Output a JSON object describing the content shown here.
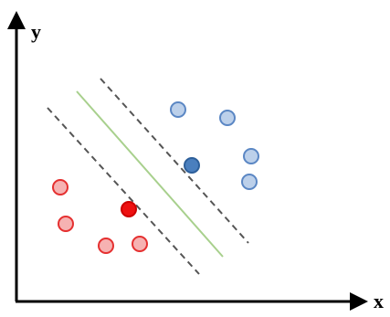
{
  "axes": {
    "x_label": "x",
    "y_label": "y"
  },
  "colors": {
    "axis": "#000000",
    "margin_line": "#555555",
    "hyperplane": "#a8d08d",
    "blue_fill": "#bcd0ea",
    "blue_stroke": "#5b87c4",
    "blue_support_fill": "#4a7fbe",
    "blue_support_stroke": "#2d5f9a",
    "red_fill": "#f6b2b2",
    "red_stroke": "#e53030",
    "red_support_fill": "#ee1111",
    "red_support_stroke": "#cc0000"
  }
}
